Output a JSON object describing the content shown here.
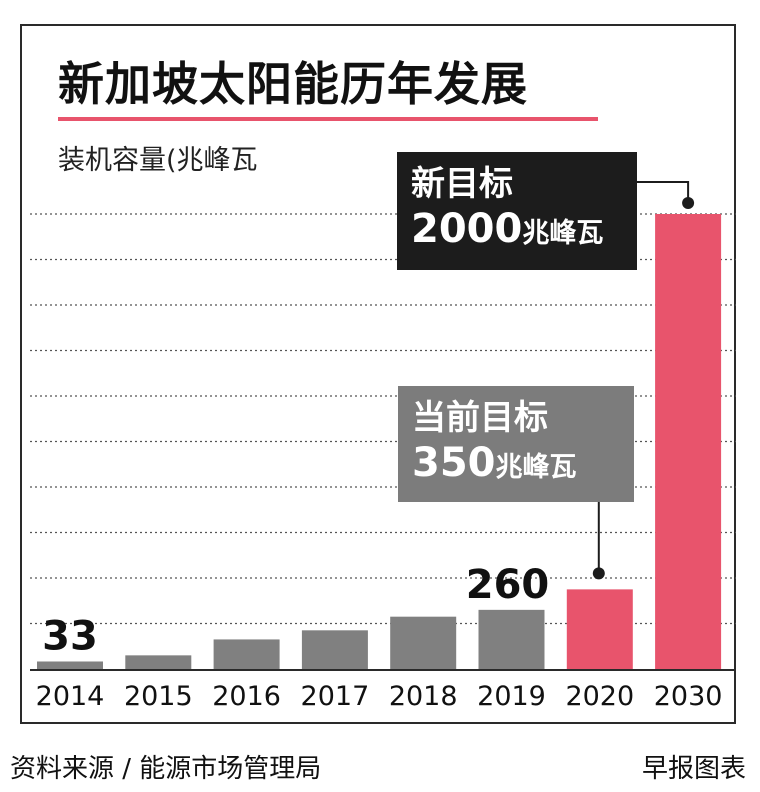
{
  "title": "新加坡太阳能历年发展",
  "unit_label": "装机容量(兆峰瓦",
  "footer": {
    "source": "资料来源 / 能源市场管理局",
    "publisher": "早报图表"
  },
  "colors": {
    "gray_bar": "#808080",
    "red_bar": "#e8546c",
    "dark_box": "#1c1c1c",
    "gray_box": "#7c7c7c"
  },
  "callouts": {
    "new_target": {
      "label": "新目标",
      "value": "2000",
      "unit": "兆峰瓦"
    },
    "current_target": {
      "label": "当前目标",
      "value": "350",
      "unit": "兆峰瓦"
    }
  },
  "chart_data": {
    "type": "bar",
    "categories": [
      "2014",
      "2015",
      "2016",
      "2017",
      "2018",
      "2019",
      "2020",
      "2030"
    ],
    "values": [
      33,
      60,
      130,
      170,
      230,
      260,
      350,
      2000
    ],
    "highlight": [
      false,
      false,
      false,
      false,
      false,
      false,
      true,
      true
    ],
    "data_labels": [
      "33",
      "",
      "",
      "",
      "",
      "260",
      "",
      ""
    ],
    "ylabel": "装机容量(兆峰瓦",
    "ylim": [
      0,
      2000
    ],
    "grid": true
  }
}
